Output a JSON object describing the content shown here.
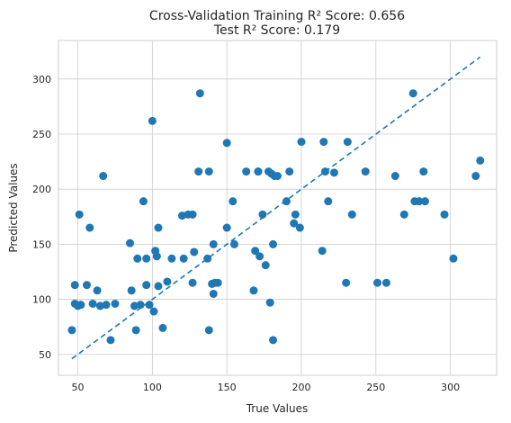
{
  "chart_data": {
    "type": "scatter",
    "title": "Cross-Validation Training R² Score: 0.656",
    "subtitle": "Test R² Score: 0.179",
    "xlabel": "True Values",
    "ylabel": "Predicted Values",
    "xlim": [
      37,
      331
    ],
    "ylim": [
      31,
      335
    ],
    "xticks": [
      50,
      100,
      150,
      200,
      250,
      300
    ],
    "yticks": [
      50,
      100,
      150,
      200,
      250,
      300
    ],
    "grid": true,
    "colors": {
      "points": "#1f77b4",
      "line": "#1f77b4"
    },
    "series": [
      {
        "kind": "points",
        "x": [
          46,
          48,
          48,
          50,
          51,
          52,
          56,
          58,
          60,
          63,
          65,
          67,
          69,
          72,
          75,
          85,
          86,
          88,
          89,
          90,
          92,
          94,
          96,
          96,
          98,
          100,
          101,
          102,
          103,
          104,
          104,
          107,
          110,
          113,
          120,
          121,
          124,
          127,
          127,
          128,
          131,
          132,
          137,
          138,
          138,
          140,
          141,
          141,
          142,
          144,
          150,
          150,
          154,
          155,
          163,
          168,
          169,
          171,
          171,
          172,
          174,
          176,
          178,
          179,
          180,
          181,
          181,
          182,
          184,
          190,
          192,
          195,
          196,
          199,
          200,
          214,
          215,
          216,
          218,
          222,
          230,
          231,
          234,
          243,
          251,
          257,
          263,
          269,
          275,
          276,
          279,
          282,
          283,
          296,
          302,
          317,
          320
        ],
        "y": [
          72,
          96,
          113,
          94,
          177,
          95,
          113,
          165,
          96,
          108,
          94,
          212,
          95,
          63,
          96,
          151,
          108,
          94,
          72,
          137,
          95,
          189,
          113,
          137,
          95,
          262,
          89,
          144,
          139,
          165,
          112,
          74,
          116,
          137,
          176,
          137,
          177,
          115,
          177,
          143,
          216,
          287,
          137,
          216,
          72,
          114,
          105,
          150,
          115,
          115,
          242,
          165,
          189,
          150,
          216,
          108,
          144,
          216,
          216,
          139,
          177,
          131,
          216,
          97,
          214,
          63,
          150,
          212,
          212,
          189,
          216,
          169,
          177,
          165,
          243,
          144,
          243,
          216,
          189,
          215,
          115,
          243,
          177,
          216,
          115,
          115,
          212,
          177,
          287,
          189,
          189,
          216,
          189,
          177,
          137,
          212,
          226
        ]
      },
      {
        "kind": "line",
        "style": "dashed",
        "x": [
          46,
          320
        ],
        "y": [
          46,
          320
        ]
      }
    ]
  }
}
